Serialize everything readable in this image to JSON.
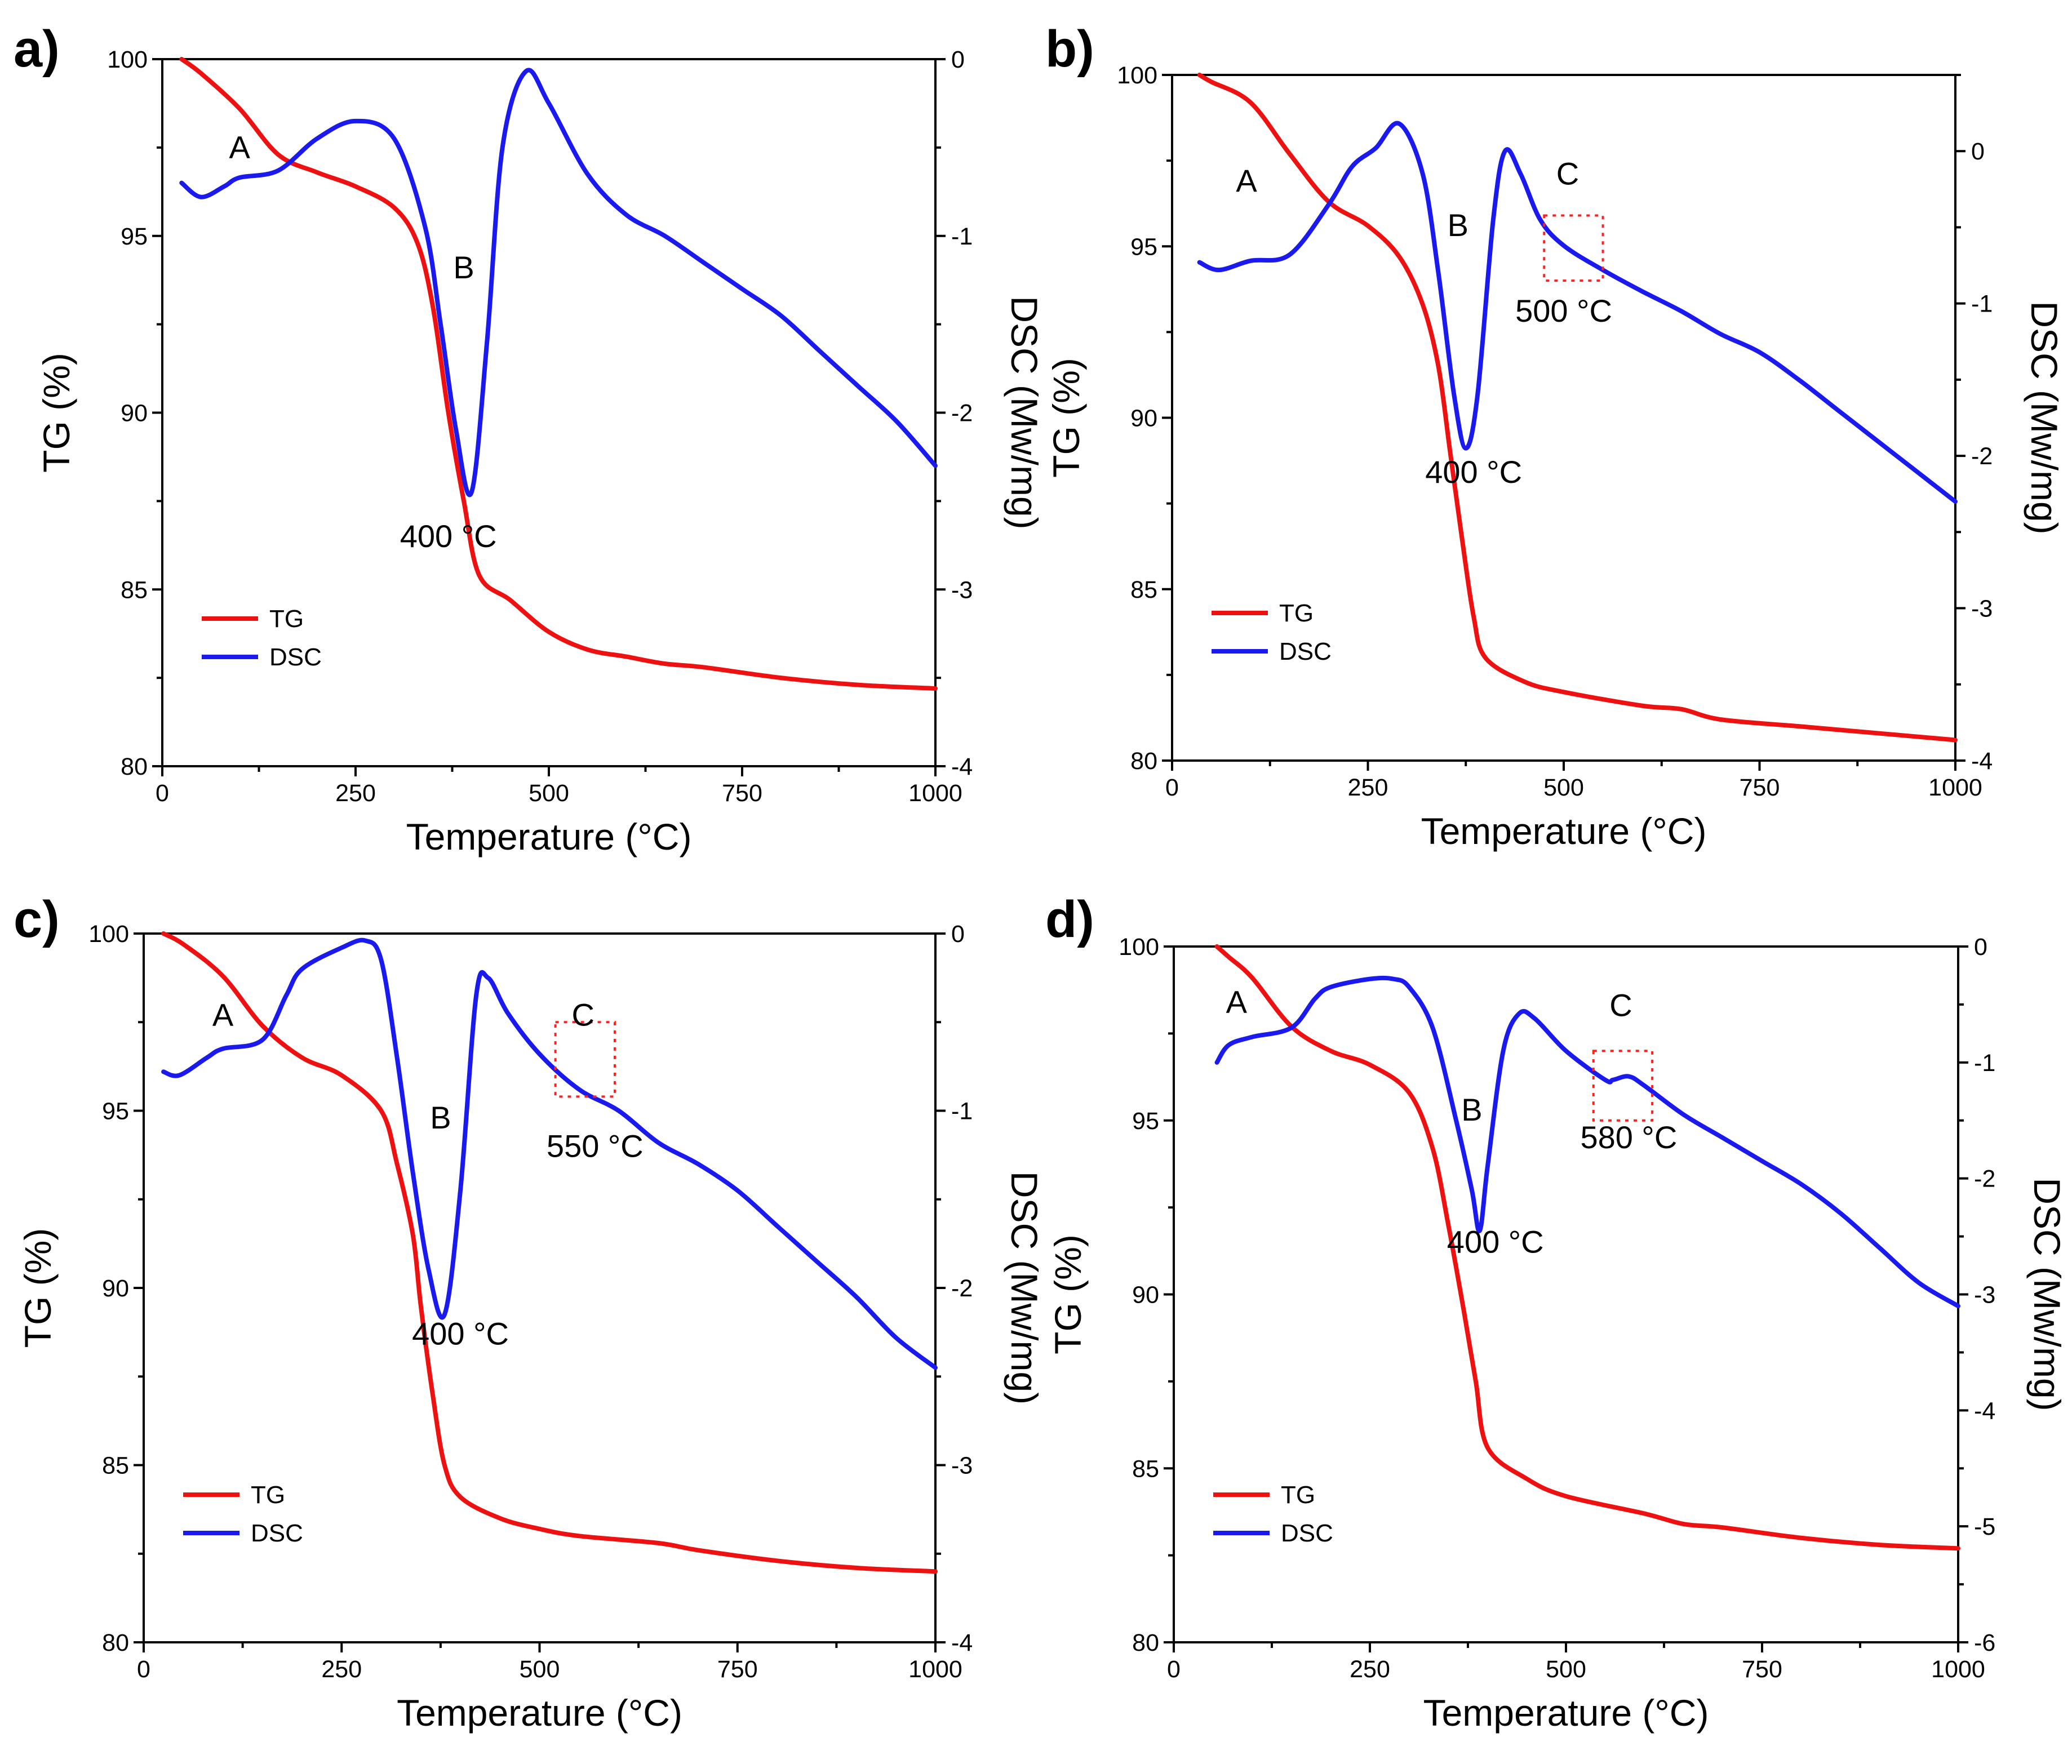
{
  "colors": {
    "tg": "#ee1111",
    "dsc": "#1a1aee",
    "marker": "#ff2020"
  },
  "chart_data": [
    {
      "id": "a",
      "type": "line",
      "panel_label": "a)",
      "xlabel": "Temperature (°C)",
      "ylabel": "TG (%)",
      "y2label": "DSC (Mw/mg)",
      "xlim": [
        0,
        1000
      ],
      "ylim": [
        80,
        100
      ],
      "y2lim": [
        -4,
        0
      ],
      "xticks": [
        "0",
        "250",
        "500",
        "750",
        "1000"
      ],
      "yticks": [
        "80",
        "85",
        "90",
        "95",
        "100"
      ],
      "y2ticks": [
        "-4",
        "-3",
        "-2",
        "-1",
        "0"
      ],
      "legend": [
        "TG",
        "DSC"
      ],
      "series": [
        {
          "name": "TG",
          "axis": "left",
          "x": [
            25,
            50,
            100,
            150,
            200,
            250,
            300,
            330,
            350,
            370,
            390,
            410,
            450,
            500,
            550,
            600,
            650,
            700,
            800,
            900,
            1000
          ],
          "y": [
            100,
            99.6,
            98.6,
            97.3,
            96.8,
            96.4,
            95.8,
            94.8,
            93.0,
            90.0,
            87.5,
            85.4,
            84.7,
            83.8,
            83.3,
            83.1,
            82.9,
            82.8,
            82.5,
            82.3,
            82.2
          ]
        },
        {
          "name": "DSC",
          "axis": "right",
          "x": [
            25,
            50,
            80,
            100,
            150,
            200,
            250,
            300,
            340,
            360,
            380,
            400,
            420,
            440,
            470,
            500,
            550,
            600,
            650,
            700,
            750,
            800,
            850,
            900,
            950,
            1000
          ],
          "y": [
            -0.7,
            -0.78,
            -0.72,
            -0.67,
            -0.63,
            -0.45,
            -0.35,
            -0.45,
            -0.95,
            -1.5,
            -2.1,
            -2.45,
            -1.6,
            -0.5,
            -0.07,
            -0.25,
            -0.65,
            -0.88,
            -1.0,
            -1.15,
            -1.3,
            -1.45,
            -1.65,
            -1.85,
            -2.05,
            -2.3
          ]
        }
      ],
      "annotations": [
        {
          "text": "A",
          "x": 100,
          "y": 97.2
        },
        {
          "text": "B",
          "x": 390,
          "y": 93.8
        },
        {
          "text": "400 °C",
          "x": 370,
          "y": 86.2
        }
      ],
      "markers": []
    },
    {
      "id": "b",
      "type": "line",
      "panel_label": "b)",
      "xlabel": "Temperature (°C)",
      "ylabel": "TG (%)",
      "y2label": "DSC (Mw/mg)",
      "xlim": [
        0,
        1000
      ],
      "ylim": [
        80,
        100
      ],
      "y2lim": [
        -4,
        0.5
      ],
      "xticks": [
        "0",
        "250",
        "500",
        "750",
        "1000"
      ],
      "yticks": [
        "80",
        "85",
        "90",
        "95",
        "100"
      ],
      "y2ticks": [
        "-4",
        "-3",
        "-2",
        "-1",
        "0"
      ],
      "legend": [
        "TG",
        "DSC"
      ],
      "series": [
        {
          "name": "TG",
          "axis": "left",
          "x": [
            35,
            50,
            100,
            150,
            200,
            250,
            290,
            320,
            340,
            355,
            370,
            385,
            400,
            450,
            500,
            600,
            650,
            700,
            800,
            900,
            1000
          ],
          "y": [
            100,
            99.8,
            99.2,
            97.7,
            96.3,
            95.6,
            94.7,
            93.3,
            91.5,
            89.0,
            86.5,
            84.2,
            83.0,
            82.3,
            82.0,
            81.6,
            81.5,
            81.2,
            81.0,
            80.8,
            80.6
          ]
        },
        {
          "name": "DSC",
          "axis": "right",
          "x": [
            35,
            60,
            100,
            150,
            200,
            230,
            260,
            290,
            320,
            340,
            360,
            375,
            390,
            410,
            425,
            445,
            470,
            500,
            550,
            600,
            650,
            700,
            750,
            800,
            850,
            900,
            950,
            1000
          ],
          "y": [
            -0.73,
            -0.78,
            -0.72,
            -0.68,
            -0.35,
            -0.1,
            0.02,
            0.18,
            -0.15,
            -0.8,
            -1.6,
            -1.95,
            -1.6,
            -0.45,
            0.0,
            -0.15,
            -0.45,
            -0.62,
            -0.78,
            -0.92,
            -1.05,
            -1.2,
            -1.32,
            -1.5,
            -1.7,
            -1.9,
            -2.1,
            -2.3
          ]
        }
      ],
      "annotations": [
        {
          "text": "A",
          "x": 95,
          "y": 96.6
        },
        {
          "text": "B",
          "x": 365,
          "y": 95.3
        },
        {
          "text": "C",
          "x": 505,
          "y": 96.8
        },
        {
          "text": "500 °C",
          "x": 500,
          "y": 92.8
        },
        {
          "text": "400 °C",
          "x": 385,
          "y": 88.1
        }
      ],
      "markers": [
        {
          "x0": 475,
          "x1": 550,
          "y0": 94.0,
          "y1": 95.9
        }
      ]
    },
    {
      "id": "c",
      "type": "line",
      "panel_label": "c)",
      "xlabel": "Temperature (°C)",
      "ylabel": "TG (%)",
      "y2label": "DSC (Mw/mg)",
      "xlim": [
        0,
        1000
      ],
      "ylim": [
        80,
        100
      ],
      "y2lim": [
        -4,
        0
      ],
      "xticks": [
        "0",
        "250",
        "500",
        "750",
        "1000"
      ],
      "yticks": [
        "80",
        "85",
        "90",
        "95",
        "100"
      ],
      "y2ticks": [
        "-4",
        "-3",
        "-2",
        "-1",
        "0"
      ],
      "legend": [
        "TG",
        "DSC"
      ],
      "series": [
        {
          "name": "TG",
          "axis": "left",
          "x": [
            25,
            50,
            100,
            150,
            200,
            250,
            300,
            320,
            340,
            350,
            365,
            380,
            400,
            450,
            500,
            550,
            650,
            700,
            800,
            900,
            1000
          ],
          "y": [
            100,
            99.7,
            98.8,
            97.4,
            96.5,
            96.0,
            95.0,
            93.5,
            91.5,
            89.5,
            87.0,
            85.0,
            84.1,
            83.5,
            83.2,
            83.0,
            82.8,
            82.6,
            82.3,
            82.1,
            82.0
          ]
        },
        {
          "name": "DSC",
          "axis": "right",
          "x": [
            25,
            45,
            80,
            100,
            150,
            180,
            200,
            250,
            280,
            300,
            320,
            340,
            360,
            380,
            400,
            420,
            435,
            460,
            500,
            550,
            600,
            650,
            700,
            750,
            800,
            850,
            900,
            950,
            1000
          ],
          "y": [
            -0.78,
            -0.8,
            -0.7,
            -0.65,
            -0.6,
            -0.35,
            -0.2,
            -0.08,
            -0.04,
            -0.15,
            -0.7,
            -1.35,
            -1.9,
            -2.15,
            -1.45,
            -0.35,
            -0.25,
            -0.45,
            -0.68,
            -0.88,
            -1.0,
            -1.18,
            -1.3,
            -1.45,
            -1.65,
            -1.85,
            -2.05,
            -2.28,
            -2.45
          ]
        }
      ],
      "annotations": [
        {
          "text": "A",
          "x": 100,
          "y": 97.4
        },
        {
          "text": "B",
          "x": 375,
          "y": 94.5
        },
        {
          "text": "C",
          "x": 555,
          "y": 97.4
        },
        {
          "text": "550 °C",
          "x": 570,
          "y": 93.7
        },
        {
          "text": "400 °C",
          "x": 400,
          "y": 88.4
        }
      ],
      "markers": [
        {
          "x0": 520,
          "x1": 595,
          "y0": 95.4,
          "y1": 97.5
        }
      ]
    },
    {
      "id": "d",
      "type": "line",
      "panel_label": "d)",
      "xlabel": "Temperature (°C)",
      "ylabel": "TG (%)",
      "y2label": "DSC (Mw/mg)",
      "xlim": [
        0,
        1000
      ],
      "ylim": [
        80,
        100
      ],
      "y2lim": [
        -6,
        0
      ],
      "xticks": [
        "0",
        "250",
        "500",
        "750",
        "1000"
      ],
      "yticks": [
        "80",
        "85",
        "90",
        "95",
        "100"
      ],
      "y2ticks": [
        "-6",
        "-5",
        "-4",
        "-3",
        "-2",
        "-1",
        "0"
      ],
      "legend": [
        "TG",
        "DSC"
      ],
      "series": [
        {
          "name": "TG",
          "axis": "left",
          "x": [
            55,
            70,
            100,
            150,
            200,
            250,
            300,
            330,
            350,
            370,
            385,
            400,
            450,
            500,
            600,
            650,
            700,
            800,
            900,
            1000
          ],
          "y": [
            100,
            99.7,
            99.1,
            97.7,
            97.0,
            96.6,
            95.8,
            94.2,
            92.0,
            89.5,
            87.5,
            85.6,
            84.7,
            84.2,
            83.7,
            83.4,
            83.3,
            83.0,
            82.8,
            82.7
          ]
        },
        {
          "name": "DSC",
          "axis": "right",
          "x": [
            55,
            70,
            100,
            150,
            180,
            200,
            250,
            280,
            300,
            330,
            360,
            380,
            390,
            400,
            420,
            440,
            460,
            500,
            550,
            560,
            580,
            600,
            650,
            700,
            750,
            800,
            850,
            900,
            950,
            1000
          ],
          "y": [
            -1.0,
            -0.85,
            -0.78,
            -0.7,
            -0.45,
            -0.35,
            -0.28,
            -0.28,
            -0.35,
            -0.7,
            -1.5,
            -2.1,
            -2.45,
            -1.9,
            -0.9,
            -0.58,
            -0.62,
            -0.9,
            -1.15,
            -1.15,
            -1.12,
            -1.2,
            -1.45,
            -1.65,
            -1.85,
            -2.05,
            -2.3,
            -2.6,
            -2.9,
            -3.1
          ]
        }
      ],
      "annotations": [
        {
          "text": "A",
          "x": 80,
          "y": 98.1
        },
        {
          "text": "B",
          "x": 380,
          "y": 95.0
        },
        {
          "text": "C",
          "x": 570,
          "y": 98.0
        },
        {
          "text": "580 °C",
          "x": 580,
          "y": 94.2
        },
        {
          "text": "400 °C",
          "x": 410,
          "y": 91.2
        }
      ],
      "markers": [
        {
          "x0": 535,
          "x1": 610,
          "y0": 95.0,
          "y1": 97.0
        }
      ]
    }
  ]
}
